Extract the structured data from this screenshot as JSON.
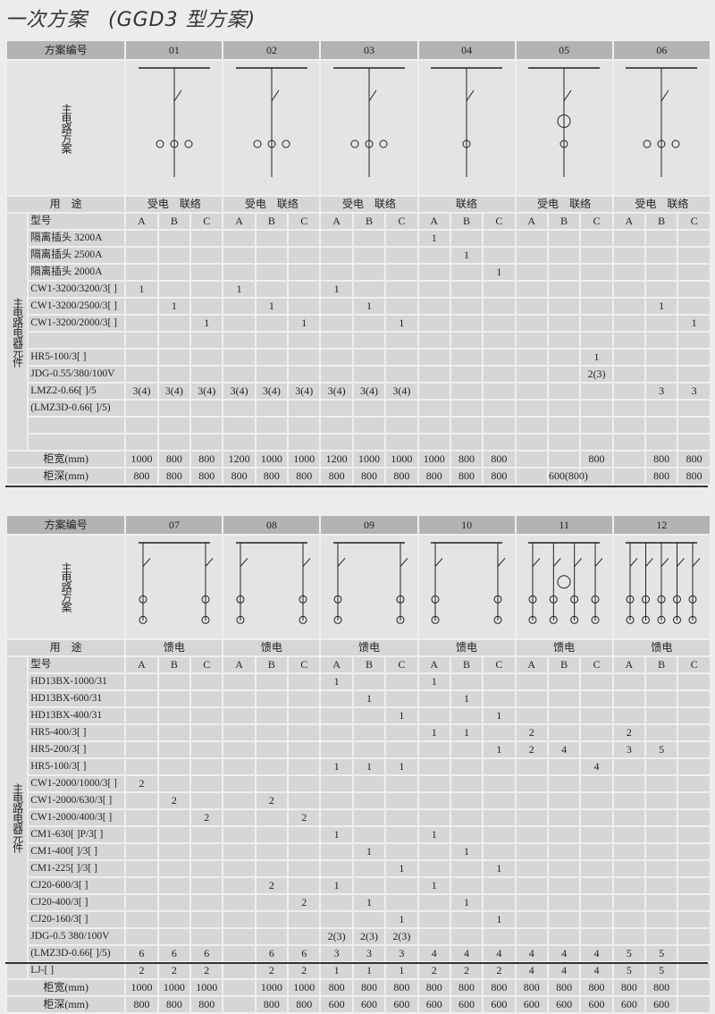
{
  "page_title": "一次方案　(GGD3 型方案)",
  "labels": {
    "scheme_no": "方案编号",
    "main_circuit": "主电路方案",
    "usage": "用　途",
    "model": "型号",
    "components": "主电路电器元件",
    "width": "柜宽(mm)",
    "depth": "柜深(mm)",
    "sub_cols": [
      "A",
      "B",
      "C"
    ]
  },
  "table1": {
    "schemes": [
      "01",
      "02",
      "03",
      "04",
      "05",
      "06"
    ],
    "usage": [
      "受电　联络",
      "受电　联络",
      "受电　联络",
      "联络",
      "受电　联络",
      "受电　联络"
    ],
    "rows": [
      {
        "label": "隔离插头 3200A",
        "values": [
          "",
          "",
          "",
          "",
          "",
          "",
          "",
          "",
          "",
          "1",
          "",
          "",
          "",
          "",
          "",
          "",
          "",
          ""
        ]
      },
      {
        "label": "隔离插头 2500A",
        "values": [
          "",
          "",
          "",
          "",
          "",
          "",
          "",
          "",
          "",
          "",
          "1",
          "",
          "",
          "",
          "",
          "",
          "",
          ""
        ]
      },
      {
        "label": "隔离插头 2000A",
        "values": [
          "",
          "",
          "",
          "",
          "",
          "",
          "",
          "",
          "",
          "",
          "",
          "1",
          "",
          "",
          "",
          "",
          "",
          ""
        ]
      },
      {
        "label": "CW1-3200/3200/3[ ]",
        "values": [
          "1",
          "",
          "",
          "1",
          "",
          "",
          "1",
          "",
          "",
          "",
          "",
          "",
          "",
          "",
          "",
          "",
          "",
          ""
        ]
      },
      {
        "label": "CW1-3200/2500/3[ ]",
        "values": [
          "",
          "1",
          "",
          "",
          "1",
          "",
          "",
          "1",
          "",
          "",
          "",
          "",
          "",
          "",
          "",
          "",
          "1",
          ""
        ]
      },
      {
        "label": "CW1-3200/2000/3[ ]",
        "values": [
          "",
          "",
          "1",
          "",
          "",
          "1",
          "",
          "",
          "1",
          "",
          "",
          "",
          "",
          "",
          "",
          "",
          "",
          "1"
        ]
      },
      {
        "label": "",
        "values": [
          "",
          "",
          "",
          "",
          "",
          "",
          "",
          "",
          "",
          "",
          "",
          "",
          "",
          "",
          "",
          "",
          "",
          ""
        ]
      },
      {
        "label": "HR5-100/3[ ]",
        "values": [
          "",
          "",
          "",
          "",
          "",
          "",
          "",
          "",
          "",
          "",
          "",
          "",
          "",
          "",
          "1",
          "",
          "",
          ""
        ]
      },
      {
        "label": "JDG-0.55/380/100V",
        "values": [
          "",
          "",
          "",
          "",
          "",
          "",
          "",
          "",
          "",
          "",
          "",
          "",
          "",
          "",
          "2(3)",
          "",
          "",
          ""
        ]
      },
      {
        "label": "LMZ2-0.66[ ]/5",
        "values": [
          "3(4)",
          "3(4)",
          "3(4)",
          "3(4)",
          "3(4)",
          "3(4)",
          "3(4)",
          "3(4)",
          "3(4)",
          "",
          "",
          "",
          "",
          "",
          "",
          "",
          "3",
          "3"
        ]
      },
      {
        "label": "(LMZ3D-0.66[ ]/5)",
        "values": [
          "",
          "",
          "",
          "",
          "",
          "",
          "",
          "",
          "",
          "",
          "",
          "",
          "",
          "",
          "",
          "",
          "",
          ""
        ]
      },
      {
        "label": "",
        "values": [
          "",
          "",
          "",
          "",
          "",
          "",
          "",
          "",
          "",
          "",
          "",
          "",
          "",
          "",
          "",
          "",
          "",
          ""
        ]
      },
      {
        "label": "",
        "values": [
          "",
          "",
          "",
          "",
          "",
          "",
          "",
          "",
          "",
          "",
          "",
          "",
          "",
          "",
          "",
          "",
          "",
          ""
        ]
      }
    ],
    "width": [
      "1000",
      "800",
      "800",
      "1200",
      "1000",
      "1000",
      "1200",
      "1000",
      "1000",
      "1000",
      "800",
      "800",
      "",
      "",
      "800",
      "",
      "800",
      "800"
    ],
    "depth": [
      "800",
      "800",
      "800",
      "800",
      "800",
      "800",
      "800",
      "800",
      "800",
      "800",
      "800",
      "800",
      "",
      "600(800)",
      "",
      "",
      "800",
      "800"
    ]
  },
  "table2": {
    "schemes": [
      "07",
      "08",
      "09",
      "10",
      "11",
      "12"
    ],
    "usage": [
      "馈电",
      "馈电",
      "馈电",
      "馈电",
      "馈电",
      "馈电"
    ],
    "rows": [
      {
        "label": "HD13BX-1000/31",
        "values": [
          "",
          "",
          "",
          "",
          "",
          "",
          "1",
          "",
          "",
          "1",
          "",
          "",
          "",
          "",
          "",
          "",
          "",
          ""
        ]
      },
      {
        "label": "HD13BX-600/31",
        "values": [
          "",
          "",
          "",
          "",
          "",
          "",
          "",
          "1",
          "",
          "",
          "1",
          "",
          "",
          "",
          "",
          "",
          "",
          ""
        ]
      },
      {
        "label": "HD13BX-400/31",
        "values": [
          "",
          "",
          "",
          "",
          "",
          "",
          "",
          "",
          "1",
          "",
          "",
          "1",
          "",
          "",
          "",
          "",
          "",
          ""
        ]
      },
      {
        "label": "HR5-400/3[ ]",
        "values": [
          "",
          "",
          "",
          "",
          "",
          "",
          "",
          "",
          "",
          "1",
          "1",
          "",
          "2",
          "",
          "",
          "2",
          "",
          ""
        ]
      },
      {
        "label": "HR5-200/3[ ]",
        "values": [
          "",
          "",
          "",
          "",
          "",
          "",
          "",
          "",
          "",
          "",
          "",
          "1",
          "2",
          "4",
          "",
          "3",
          "5",
          ""
        ]
      },
      {
        "label": "HR5-100/3[ ]",
        "values": [
          "",
          "",
          "",
          "",
          "",
          "",
          "1",
          "1",
          "1",
          "",
          "",
          "",
          "",
          "",
          "4",
          "",
          "",
          ""
        ]
      },
      {
        "label": "CW1-2000/1000/3[ ]",
        "values": [
          "2",
          "",
          "",
          "",
          "",
          "",
          "",
          "",
          "",
          "",
          "",
          "",
          "",
          "",
          "",
          "",
          "",
          ""
        ]
      },
      {
        "label": "CW1-2000/630/3[ ]",
        "values": [
          "",
          "2",
          "",
          "",
          "2",
          "",
          "",
          "",
          "",
          "",
          "",
          "",
          "",
          "",
          "",
          "",
          "",
          ""
        ]
      },
      {
        "label": "CW1-2000/400/3[ ]",
        "values": [
          "",
          "",
          "2",
          "",
          "",
          "2",
          "",
          "",
          "",
          "",
          "",
          "",
          "",
          "",
          "",
          "",
          "",
          ""
        ]
      },
      {
        "label": "CM1-630[ ]P/3[ ]",
        "values": [
          "",
          "",
          "",
          "",
          "",
          "",
          "1",
          "",
          "",
          "1",
          "",
          "",
          "",
          "",
          "",
          "",
          "",
          ""
        ]
      },
      {
        "label": "CM1-400[ ]/3[ ]",
        "values": [
          "",
          "",
          "",
          "",
          "",
          "",
          "",
          "1",
          "",
          "",
          "1",
          "",
          "",
          "",
          "",
          "",
          "",
          ""
        ]
      },
      {
        "label": "CM1-225[ ]/3[ ]",
        "values": [
          "",
          "",
          "",
          "",
          "",
          "",
          "",
          "",
          "1",
          "",
          "",
          "1",
          "",
          "",
          "",
          "",
          "",
          ""
        ]
      },
      {
        "label": "CJ20-600/3[ ]",
        "values": [
          "",
          "",
          "",
          "",
          "2",
          "",
          "1",
          "",
          "",
          "1",
          "",
          "",
          "",
          "",
          "",
          "",
          "",
          ""
        ]
      },
      {
        "label": "CJ20-400/3[ ]",
        "values": [
          "",
          "",
          "",
          "",
          "",
          "2",
          "",
          "1",
          "",
          "",
          "1",
          "",
          "",
          "",
          "",
          "",
          "",
          ""
        ]
      },
      {
        "label": "CJ20-160/3[ ]",
        "values": [
          "",
          "",
          "",
          "",
          "",
          "",
          "",
          "",
          "1",
          "",
          "",
          "1",
          "",
          "",
          "",
          "",
          "",
          ""
        ]
      },
      {
        "label": "JDG-0.5  380/100V",
        "values": [
          "",
          "",
          "",
          "",
          "",
          "",
          "2(3)",
          "2(3)",
          "2(3)",
          "",
          "",
          "",
          "",
          "",
          "",
          "",
          "",
          ""
        ]
      },
      {
        "label": "(LMZ3D-0.66[ ]/5)",
        "values": [
          "6",
          "6",
          "6",
          "",
          "6",
          "6",
          "3",
          "3",
          "3",
          "4",
          "4",
          "4",
          "4",
          "4",
          "4",
          "5",
          "5",
          ""
        ]
      },
      {
        "label": "LJ-[ ]",
        "values": [
          "2",
          "2",
          "2",
          "",
          "2",
          "2",
          "1",
          "1",
          "1",
          "2",
          "2",
          "2",
          "4",
          "4",
          "4",
          "5",
          "5",
          ""
        ]
      }
    ],
    "width": [
      "1000",
      "1000",
      "1000",
      "",
      "1000",
      "1000",
      "800",
      "800",
      "800",
      "800",
      "800",
      "800",
      "800",
      "800",
      "800",
      "800",
      "800",
      ""
    ],
    "depth": [
      "800",
      "800",
      "800",
      "",
      "800",
      "800",
      "600",
      "600",
      "600",
      "600",
      "600",
      "600",
      "600",
      "600",
      "600",
      "600",
      "600",
      ""
    ]
  }
}
